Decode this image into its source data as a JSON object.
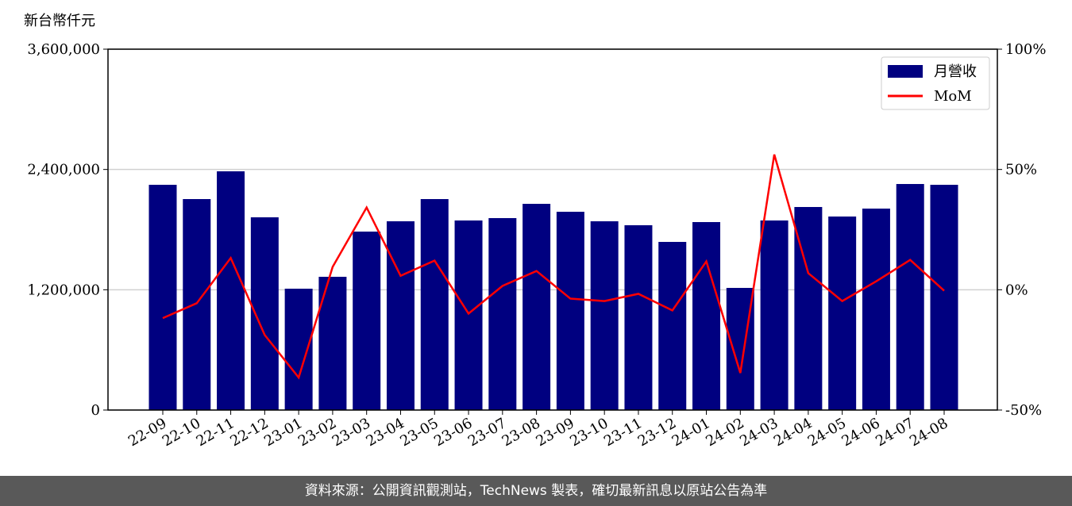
{
  "chart_data": {
    "type": "bar",
    "y_label": "新台幣仟元",
    "categories": [
      "22-09",
      "22-10",
      "22-11",
      "22-12",
      "23-01",
      "23-02",
      "23-03",
      "23-04",
      "23-05",
      "23-06",
      "23-07",
      "23-08",
      "23-09",
      "23-10",
      "23-11",
      "23-12",
      "24-01",
      "24-02",
      "24-03",
      "24-04",
      "24-05",
      "24-06",
      "24-07",
      "24-08"
    ],
    "series": [
      {
        "name": "月營收",
        "type": "bar",
        "color": "#000080",
        "values": [
          2247000,
          2104600,
          2381500,
          1922600,
          1210500,
          1329200,
          1780200,
          1883000,
          2104600,
          1891000,
          1914700,
          2057100,
          1978000,
          1883000,
          1843500,
          1677300,
          1875100,
          1218400,
          1891000,
          2025500,
          1930500,
          2009600,
          2254900,
          2247000
        ]
      },
      {
        "name": "MoM",
        "type": "line",
        "axis": "y2",
        "color": "#ff0000",
        "values": [
          -11.8,
          -5.6,
          13.2,
          -18.8,
          -36.5,
          9.5,
          34.2,
          5.8,
          12.1,
          -9.9,
          1.6,
          7.8,
          -3.7,
          -4.7,
          -1.7,
          -8.6,
          11.8,
          -34.6,
          56.2,
          6.9,
          -4.7,
          3.5,
          12.4,
          -0.4
        ]
      }
    ],
    "ylim": [
      0,
      3600000
    ],
    "yticks": [
      0,
      {
        "value": 1200000,
        "label": "1,200,000"
      },
      {
        "value": 2400000,
        "label": "2,400,000"
      },
      {
        "value": 3600000,
        "label": "3,600,000"
      }
    ],
    "y2lim": [
      -50,
      100
    ],
    "y2ticks": [
      {
        "value": -50,
        "label": "-50%"
      },
      {
        "value": 0,
        "label": "0%"
      },
      {
        "value": 50,
        "label": "50%"
      },
      {
        "value": 100,
        "label": "100%"
      }
    ],
    "grid": true,
    "legend": "upper right"
  },
  "footer": "資料來源：公開資訊觀測站，TechNews 製表，確切最新訊息以原站公告為準"
}
